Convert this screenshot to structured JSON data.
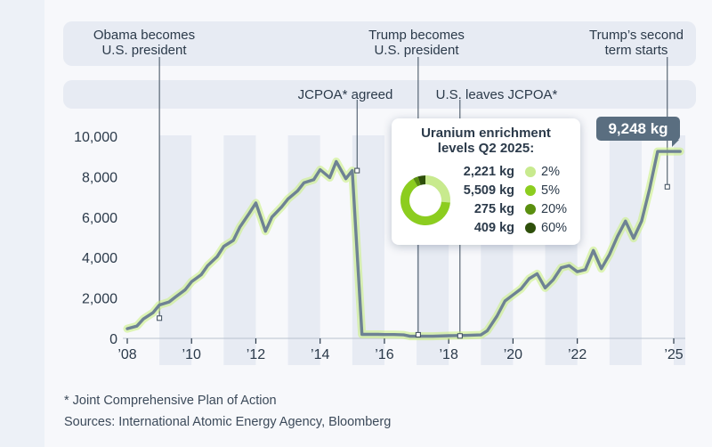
{
  "annotations": {
    "obama": "Obama becomes\nU.S. president",
    "trump1": "Trump becomes\nU.S. president",
    "trump2": "Trump’s second\nterm starts",
    "jcpoa": "JCPOA* agreed",
    "leaves": "U.S. leaves JCPOA*"
  },
  "callout": "9,248 kg",
  "legend": {
    "title": "Uranium enrichment levels Q2 2025:",
    "items": [
      {
        "kg": "2,221 kg",
        "pct": "2%",
        "value": 2221,
        "color": "#c8ea8e"
      },
      {
        "kg": "5,509 kg",
        "pct": "5%",
        "value": 5509,
        "color": "#8ccd1f"
      },
      {
        "kg": "275 kg",
        "pct": "20%",
        "value": 275,
        "color": "#5a8f0f"
      },
      {
        "kg": "409 kg",
        "pct": "60%",
        "value": 409,
        "color": "#2e4f0a"
      }
    ]
  },
  "footnotes": {
    "note": "* Joint Comprehensive Plan of Action",
    "sources": "Sources: International Atomic Energy Agency, Bloomberg"
  },
  "colors": {
    "line": "#6e8294",
    "glow": "#c9f07a",
    "band": "#e7ebf3",
    "axis": "#2b3a4a"
  },
  "chart_data": {
    "type": "line",
    "title": "",
    "xlabel": "",
    "ylabel": "",
    "xlim": [
      2008,
      2025.5
    ],
    "ylim": [
      0,
      10000
    ],
    "y_ticks": [
      0,
      2000,
      4000,
      6000,
      8000,
      10000
    ],
    "y_tick_labels": [
      "0",
      "2,000",
      "4,000",
      "6,000",
      "8,000",
      "10,000"
    ],
    "x_ticks": [
      2008,
      2010,
      2012,
      2014,
      2016,
      2018,
      2020,
      2022,
      2025
    ],
    "x_tick_labels": [
      "’08",
      "’10",
      "’12",
      "’14",
      "’16",
      "’18",
      "’20",
      "’22",
      "’25"
    ],
    "grid": "alternating vertical year bands",
    "series": [
      {
        "x": [
          2008.0,
          2008.3,
          2008.5,
          2008.8,
          2009.0,
          2009.3,
          2009.5,
          2009.8,
          2010.0,
          2010.3,
          2010.5,
          2010.8,
          2011.0,
          2011.3,
          2011.5,
          2011.8,
          2012.0,
          2012.3,
          2012.5,
          2012.8,
          2013.0,
          2013.3,
          2013.5,
          2013.8,
          2014.0,
          2014.3,
          2014.5,
          2014.8,
          2015.0,
          2015.3,
          2015.5,
          2015.8,
          2016.0,
          2016.3,
          2016.6,
          2016.8,
          2017.0,
          2017.5,
          2018.0,
          2018.3,
          2018.6,
          2019.0,
          2019.2,
          2019.5,
          2019.75,
          2020.0,
          2020.25,
          2020.5,
          2020.75,
          2021.0,
          2021.25,
          2021.5,
          2021.75,
          2022.0,
          2022.25,
          2022.5,
          2022.75,
          2023.0,
          2023.25,
          2023.5,
          2023.75,
          2024.0,
          2024.25,
          2024.5,
          2024.75,
          2025.0,
          2025.2
        ],
        "y": [
          480,
          610,
          960,
          1270,
          1650,
          1800,
          2050,
          2400,
          2800,
          3150,
          3600,
          4050,
          4550,
          4850,
          5500,
          6200,
          6700,
          5300,
          6000,
          6500,
          6900,
          7300,
          7700,
          7850,
          8350,
          7950,
          8750,
          7900,
          8300,
          200,
          200,
          200,
          190,
          190,
          170,
          105,
          105,
          105,
          130,
          140,
          150,
          170,
          380,
          1100,
          1850,
          2150,
          2450,
          2950,
          3200,
          2500,
          2900,
          3500,
          3600,
          3300,
          3400,
          4350,
          3450,
          4150,
          5050,
          5800,
          4950,
          5800,
          7400,
          9248,
          9248,
          9248,
          9248
        ]
      }
    ],
    "markers": [
      {
        "x": 2009.0,
        "y": 1000
      },
      {
        "x": 2015.15,
        "y": 8300
      },
      {
        "x": 2017.05,
        "y": 180
      },
      {
        "x": 2018.35,
        "y": 120
      },
      {
        "x": 2024.8,
        "y": 7500
      }
    ],
    "annotation_years": [
      2009.0,
      2015.15,
      2017.05,
      2018.35,
      2024.8
    ],
    "highlight_value": 9248
  }
}
